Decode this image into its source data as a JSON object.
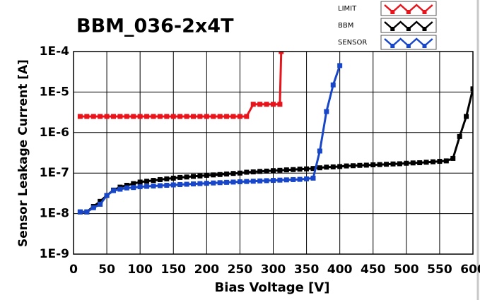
{
  "chart_data": {
    "type": "line",
    "title": "BBM_036-2x4T",
    "xlabel": "Bias Voltage [V]",
    "ylabel": "Sensor Leakage Current [A]",
    "xlim": [
      0,
      600
    ],
    "xticks": [
      0,
      50,
      100,
      150,
      200,
      250,
      300,
      350,
      400,
      450,
      500,
      550,
      600
    ],
    "ylim": [
      1e-09,
      0.0001
    ],
    "ylog": true,
    "yticks": [
      {
        "value": 1e-09,
        "label": "1E-9"
      },
      {
        "value": 1e-08,
        "label": "1E-8"
      },
      {
        "value": 1e-07,
        "label": "1E-7"
      },
      {
        "value": 1e-06,
        "label": "1E-6"
      },
      {
        "value": 1e-05,
        "label": "1E-5"
      },
      {
        "value": 0.0001,
        "label": "1E-4"
      }
    ],
    "grid": true,
    "legend": "top-right",
    "series": [
      {
        "name": "LIMIT",
        "color": "#e8141b",
        "x": [
          10,
          20,
          30,
          40,
          50,
          60,
          70,
          80,
          90,
          100,
          110,
          120,
          130,
          140,
          150,
          160,
          170,
          180,
          190,
          200,
          210,
          220,
          230,
          240,
          250,
          260,
          270,
          280,
          290,
          300,
          310,
          312
        ],
        "values": [
          2.5e-06,
          2.5e-06,
          2.5e-06,
          2.5e-06,
          2.5e-06,
          2.5e-06,
          2.5e-06,
          2.5e-06,
          2.5e-06,
          2.5e-06,
          2.5e-06,
          2.5e-06,
          2.5e-06,
          2.5e-06,
          2.5e-06,
          2.5e-06,
          2.5e-06,
          2.5e-06,
          2.5e-06,
          2.5e-06,
          2.5e-06,
          2.5e-06,
          2.5e-06,
          2.5e-06,
          2.5e-06,
          2.5e-06,
          5e-06,
          5e-06,
          5e-06,
          5e-06,
          5e-06,
          0.0001
        ]
      },
      {
        "name": "BBM",
        "color": "#000000",
        "x": [
          10,
          20,
          30,
          40,
          50,
          60,
          70,
          80,
          90,
          100,
          110,
          120,
          130,
          140,
          150,
          160,
          170,
          180,
          190,
          200,
          210,
          220,
          230,
          240,
          250,
          260,
          270,
          280,
          290,
          300,
          310,
          320,
          330,
          340,
          350,
          360,
          370,
          380,
          390,
          400,
          410,
          420,
          430,
          440,
          450,
          460,
          470,
          480,
          490,
          500,
          510,
          520,
          530,
          540,
          550,
          560,
          570,
          580,
          590,
          600
        ],
        "values": [
          1.1e-08,
          1.1e-08,
          1.5e-08,
          2e-08,
          2.8e-08,
          3.8e-08,
          4.5e-08,
          5e-08,
          5.5e-08,
          6e-08,
          6.3e-08,
          6.6e-08,
          6.9e-08,
          7.2e-08,
          7.5e-08,
          7.8e-08,
          8e-08,
          8.3e-08,
          8.5e-08,
          8.8e-08,
          9e-08,
          9.2e-08,
          9.5e-08,
          9.8e-08,
          1e-07,
          1.05e-07,
          1.07e-07,
          1.1e-07,
          1.12e-07,
          1.15e-07,
          1.17e-07,
          1.2e-07,
          1.22e-07,
          1.25e-07,
          1.27e-07,
          1.3e-07,
          1.35e-07,
          1.4e-07,
          1.42e-07,
          1.45e-07,
          1.5e-07,
          1.52e-07,
          1.55e-07,
          1.57e-07,
          1.6e-07,
          1.62e-07,
          1.65e-07,
          1.68e-07,
          1.7e-07,
          1.75e-07,
          1.78e-07,
          1.8e-07,
          1.85e-07,
          1.9e-07,
          1.95e-07,
          2e-07,
          2.3e-07,
          8e-07,
          2.5e-06,
          1.2e-05
        ]
      },
      {
        "name": "SENSOR",
        "color": "#1846c8",
        "x": [
          10,
          20,
          30,
          40,
          50,
          60,
          70,
          80,
          90,
          100,
          110,
          120,
          130,
          140,
          150,
          160,
          170,
          180,
          190,
          200,
          210,
          220,
          230,
          240,
          250,
          260,
          270,
          280,
          290,
          300,
          310,
          320,
          330,
          340,
          350,
          360,
          370,
          380,
          390,
          400
        ],
        "values": [
          1.1e-08,
          1.1e-08,
          1.4e-08,
          1.7e-08,
          2.8e-08,
          3.7e-08,
          4e-08,
          4.3e-08,
          4.4e-08,
          4.6e-08,
          4.7e-08,
          4.8e-08,
          4.9e-08,
          5e-08,
          5.1e-08,
          5.2e-08,
          5.3e-08,
          5.4e-08,
          5.5e-08,
          5.6e-08,
          5.7e-08,
          5.8e-08,
          5.9e-08,
          6e-08,
          6.1e-08,
          6.2e-08,
          6.3e-08,
          6.4e-08,
          6.5e-08,
          6.6e-08,
          6.7e-08,
          6.8e-08,
          6.9e-08,
          7e-08,
          7.2e-08,
          7.5e-08,
          3.5e-07,
          3.3e-06,
          1.5e-05,
          4.5e-05
        ]
      }
    ]
  }
}
